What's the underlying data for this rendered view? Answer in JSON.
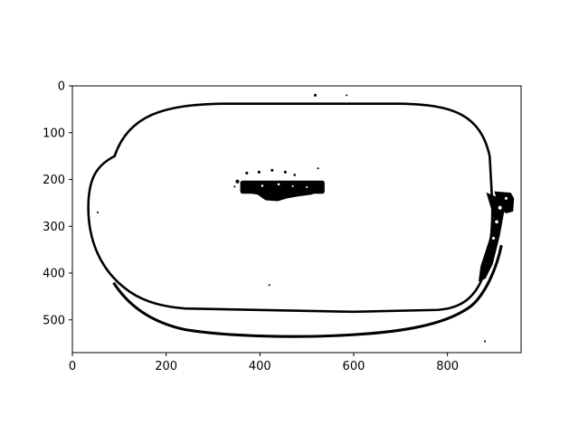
{
  "chart_data": {
    "type": "image",
    "title": "",
    "xlabel": "",
    "ylabel": "",
    "xlim": [
      0,
      957
    ],
    "ylim": [
      570,
      0
    ],
    "y_inverted": true,
    "grid": false,
    "xticks": [
      0,
      200,
      400,
      600,
      800
    ],
    "yticks": [
      0,
      100,
      200,
      300,
      400,
      500
    ],
    "image_content": "binary black-and-white outline of a rounded-rectangle object",
    "colors": {
      "foreground": "#000000",
      "background": "#ffffff",
      "axes": "#000000"
    }
  }
}
